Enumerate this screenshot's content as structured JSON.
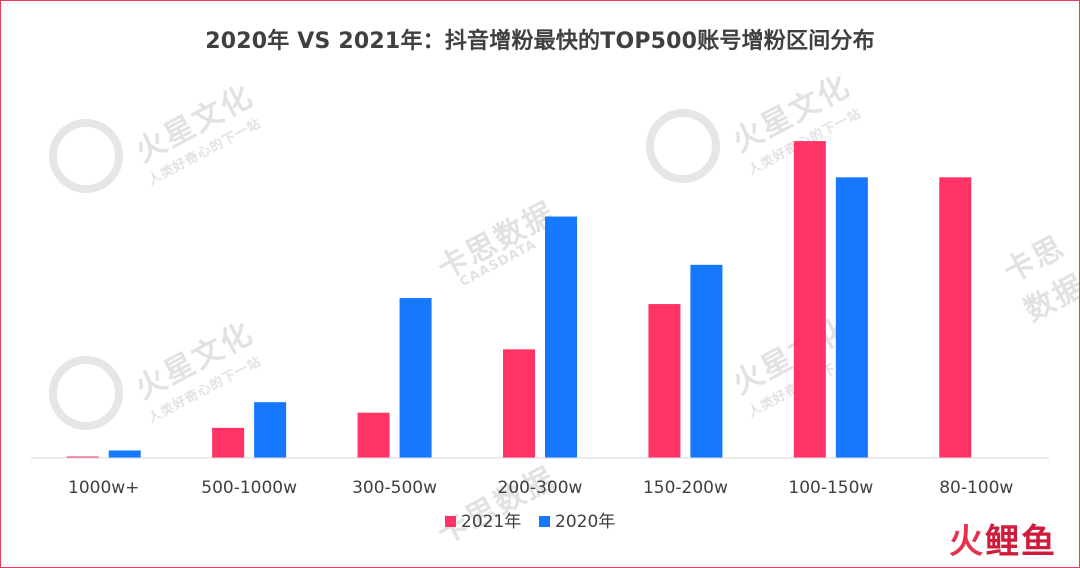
{
  "chart_data": {
    "type": "bar",
    "title": "2020年 VS 2021年：抖音增粉最快的TOP500账号增粉区间分布",
    "categories": [
      "1000w+",
      "500-1000w",
      "300-500w",
      "200-300w",
      "150-200w",
      "100-150w",
      "80-100w"
    ],
    "series": [
      {
        "name": "2021年",
        "color": "#ff3366",
        "values": [
          0.5,
          10,
          15,
          36,
          51,
          105,
          93
        ]
      },
      {
        "name": "2020年",
        "color": "#1677ff",
        "values": [
          2.5,
          18.5,
          53,
          80,
          64,
          93,
          0
        ]
      }
    ],
    "ylim": [
      0,
      110
    ],
    "grid": false,
    "legend": "bottom-center"
  },
  "watermark": {
    "brand": "火星文化",
    "slogan": "人类好奇心的下一站",
    "data_brand": "卡思数据",
    "data_brand_en": "CAASDATA"
  },
  "corner_logo": {
    "part1": "火",
    "part2": "鲤鱼"
  }
}
